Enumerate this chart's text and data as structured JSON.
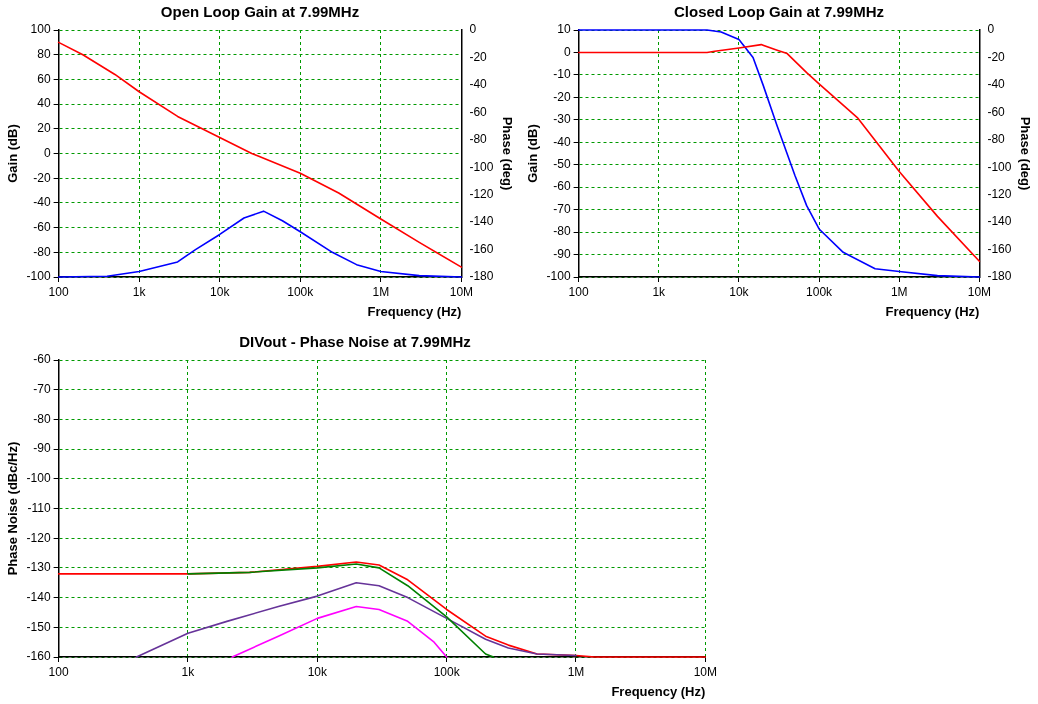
{
  "chart_data": [
    {
      "type": "line",
      "title": "Open Loop Gain at 7.99MHz",
      "xlabel": "Frequency (Hz)",
      "ylabel": "Gain (dB)",
      "y2label": "Phase (deg)",
      "log": "x",
      "grid": true,
      "marker": "none",
      "xlim": [
        100,
        10000000
      ],
      "xticks": [
        {
          "value": 100,
          "label": "100"
        },
        {
          "value": 1000,
          "label": "1k"
        },
        {
          "value": 10000,
          "label": "10k"
        },
        {
          "value": 100000,
          "label": "100k"
        },
        {
          "value": 1000000,
          "label": "1M"
        },
        {
          "value": 10000000,
          "label": "10M"
        }
      ],
      "ylim": [
        -100,
        100
      ],
      "yticks": [
        -100,
        -80,
        -60,
        -40,
        -20,
        0,
        20,
        40,
        60,
        80,
        100
      ],
      "y2lim": [
        -180,
        0
      ],
      "y2ticks": [
        -180,
        -160,
        -140,
        -120,
        -100,
        -80,
        -60,
        -40,
        -20,
        0
      ],
      "series": [
        {
          "color": "#ff0000",
          "x": [
            100,
            200,
            500,
            1000,
            3000,
            10000,
            25000,
            30000,
            100000,
            300000,
            1000000,
            3000000,
            10000000
          ],
          "values": [
            90,
            80,
            64,
            50,
            30,
            13,
            0,
            -2,
            -16,
            -32,
            -53,
            -72,
            -92
          ]
        },
        {
          "color": "#0000ff",
          "axis": "y2",
          "x": [
            100,
            400,
            1000,
            3000,
            5000,
            10000,
            20000,
            35000,
            60000,
            100000,
            250000,
            500000,
            1000000,
            3000000,
            10000000
          ],
          "values": [
            -180,
            -179.5,
            -176,
            -169,
            -160,
            -149,
            -137,
            -132,
            -139,
            -147,
            -162,
            -171,
            -176,
            -179,
            -180
          ]
        }
      ]
    },
    {
      "type": "line",
      "title": "Closed Loop Gain at 7.99MHz",
      "xlabel": "Frequency (Hz)",
      "ylabel": "Gain (dB)",
      "y2label": "Phase (deg)",
      "log": "x",
      "grid": true,
      "marker": "none",
      "xlim": [
        100,
        10000000
      ],
      "xticks": [
        {
          "value": 100,
          "label": "100"
        },
        {
          "value": 1000,
          "label": "1k"
        },
        {
          "value": 10000,
          "label": "10k"
        },
        {
          "value": 100000,
          "label": "100k"
        },
        {
          "value": 1000000,
          "label": "1M"
        },
        {
          "value": 10000000,
          "label": "10M"
        }
      ],
      "ylim": [
        -100,
        10
      ],
      "yticks": [
        -100,
        -90,
        -80,
        -70,
        -60,
        -50,
        -40,
        -30,
        -20,
        -10,
        0,
        10
      ],
      "y2lim": [
        -180,
        0
      ],
      "y2ticks": [
        -180,
        -160,
        -140,
        -120,
        -100,
        -80,
        -60,
        -40,
        -20,
        0
      ],
      "series": [
        {
          "color": "#ff0000",
          "x": [
            100,
            4000,
            5000,
            10000,
            19000,
            30000,
            40000,
            70000,
            100000,
            300000,
            1000000,
            3000000,
            10000000
          ],
          "values": [
            0,
            0,
            0.5,
            2,
            3.5,
            1,
            -0.5,
            -9,
            -14,
            -29,
            -53,
            -73,
            -93
          ]
        },
        {
          "color": "#0000ff",
          "axis": "y2",
          "x": [
            100,
            4000,
            6000,
            10000,
            15000,
            20000,
            30000,
            50000,
            70000,
            100000,
            200000,
            500000,
            1000000,
            3000000,
            10000000
          ],
          "values": [
            0,
            0,
            -1.5,
            -7,
            -20,
            -40,
            -70,
            -106,
            -128,
            -145,
            -162,
            -174,
            -176,
            -179,
            -180
          ]
        }
      ]
    },
    {
      "type": "line",
      "title": "DIVout - Phase Noise at 7.99MHz",
      "xlabel": "Frequency (Hz)",
      "ylabel": "Phase Noise (dBc/Hz)",
      "log": "x",
      "grid": true,
      "marker": "none",
      "xlim": [
        100,
        10000000
      ],
      "xticks": [
        {
          "value": 100,
          "label": "100"
        },
        {
          "value": 1000,
          "label": "1k"
        },
        {
          "value": 10000,
          "label": "10k"
        },
        {
          "value": 100000,
          "label": "100k"
        },
        {
          "value": 1000000,
          "label": "1M"
        },
        {
          "value": 10000000,
          "label": "10M"
        }
      ],
      "ylim": [
        -160,
        -60
      ],
      "yticks": [
        -160,
        -150,
        -140,
        -130,
        -120,
        -110,
        -100,
        -90,
        -80,
        -70,
        -60
      ],
      "series": [
        {
          "color": "#008000",
          "x": [
            1000,
            3000,
            10000,
            20000,
            30000,
            50000,
            100000,
            200000,
            230000
          ],
          "values": [
            -132,
            -131.5,
            -130,
            -128.7,
            -130,
            -136,
            -146.5,
            -159,
            -160
          ]
        },
        {
          "color": "#663399",
          "x": [
            400,
            1000,
            2000,
            5000,
            10000,
            20000,
            30000,
            50000,
            100000,
            200000,
            300000,
            500000,
            1000000
          ],
          "values": [
            -160,
            -152,
            -148,
            -143,
            -139.5,
            -135,
            -136,
            -140,
            -147,
            -154,
            -157,
            -159,
            -159.5
          ]
        },
        {
          "color": "#ff00ff",
          "x": [
            2200,
            5000,
            10000,
            20000,
            30000,
            50000,
            80000,
            100000
          ],
          "values": [
            -160,
            -153,
            -147,
            -143,
            -144,
            -148,
            -155,
            -160
          ]
        },
        {
          "color": "#ff0000",
          "x": [
            100,
            1000,
            3000,
            10000,
            20000,
            30000,
            50000,
            100000,
            200000,
            300000,
            500000,
            1000000,
            1400000,
            10000000
          ],
          "values": [
            -132,
            -132,
            -131.5,
            -129.5,
            -128,
            -129,
            -134,
            -144,
            -153,
            -156,
            -159,
            -159.5,
            -160,
            -160
          ]
        }
      ]
    }
  ]
}
